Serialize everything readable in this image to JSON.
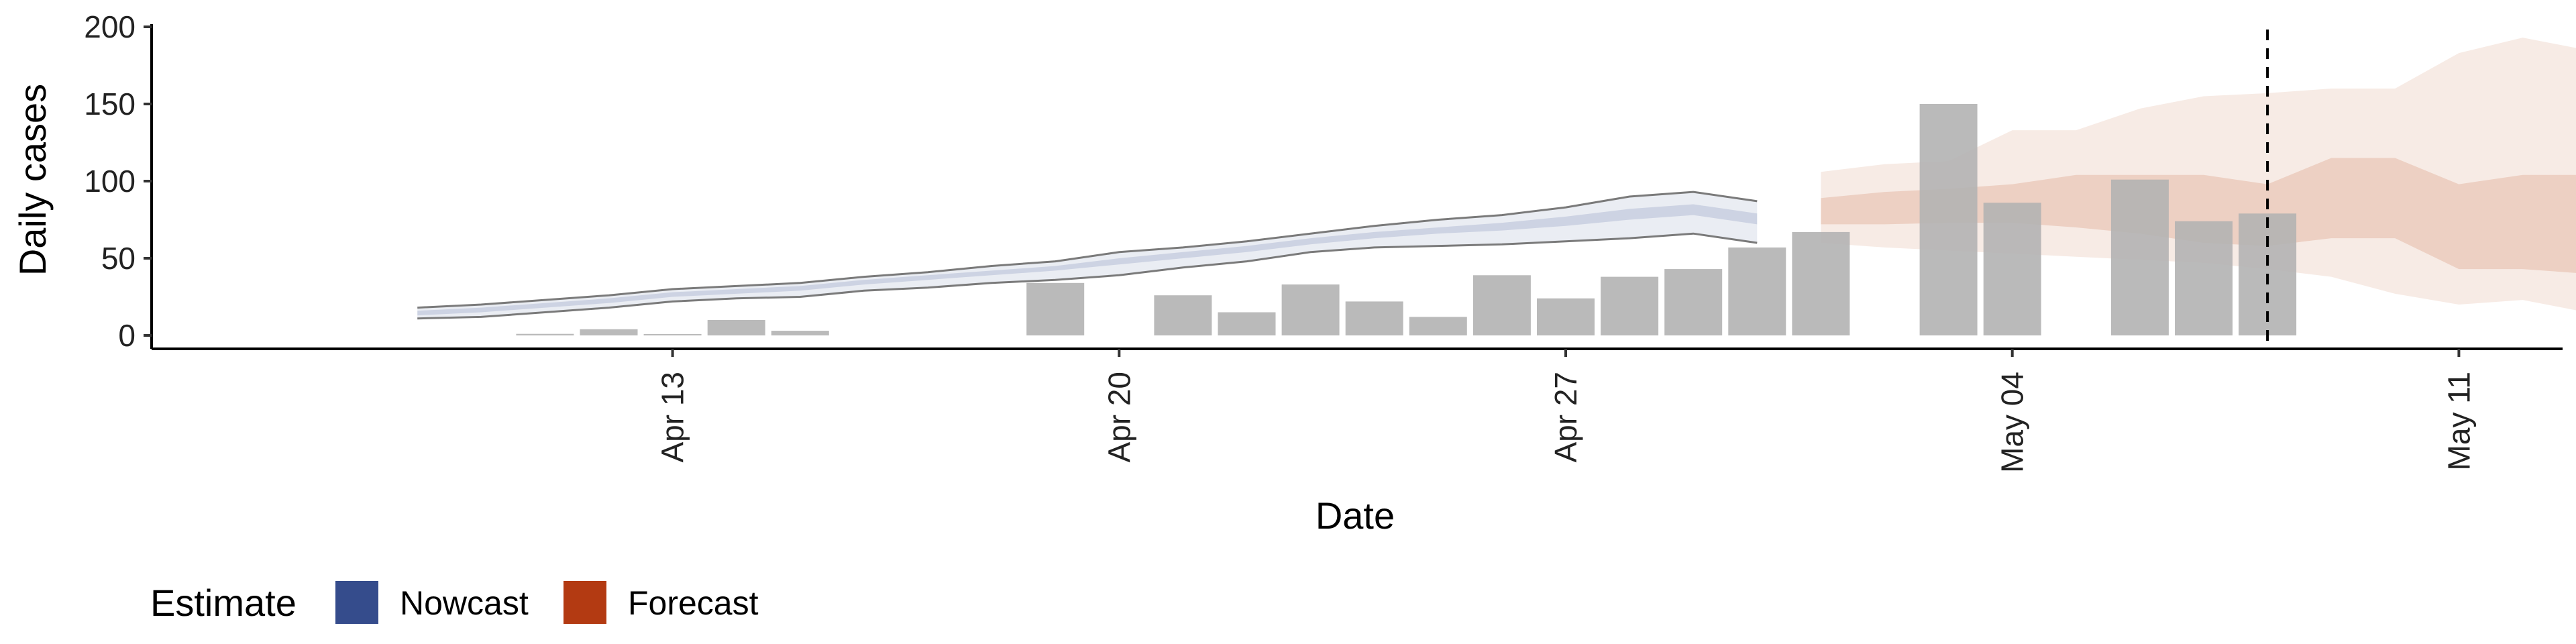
{
  "chart_data": {
    "type": "bar",
    "title": "",
    "xlabel": "Date",
    "ylabel": "Daily cases",
    "x_start": "2020-04-07",
    "x_end": "2020-05-14",
    "ylim": [
      -8,
      200
    ],
    "y_ticks": [
      0,
      50,
      100,
      150,
      200
    ],
    "x_ticks": [
      {
        "date": "2020-04-13",
        "label": "Apr 13"
      },
      {
        "date": "2020-04-20",
        "label": "Apr 20"
      },
      {
        "date": "2020-04-27",
        "label": "Apr 27"
      },
      {
        "date": "2020-05-04",
        "label": "May 04"
      },
      {
        "date": "2020-05-11",
        "label": "May 11"
      }
    ],
    "vline_date": "2020-05-08",
    "grid": false,
    "legend": {
      "title": "Estimate",
      "position": "bottom-left",
      "items": [
        {
          "label": "Nowcast",
          "color": "#354c8c"
        },
        {
          "label": "Forecast",
          "color": "#b33a12"
        }
      ]
    },
    "colors": {
      "bar": "#b3b3b3",
      "nowcast": "#354c8c",
      "forecast": "#c0582a",
      "outline": "#7a7a7a",
      "vline": "#000000"
    },
    "reported_cases": [
      {
        "date": "2020-04-11",
        "value": 1
      },
      {
        "date": "2020-04-12",
        "value": 4
      },
      {
        "date": "2020-04-13",
        "value": 0
      },
      {
        "date": "2020-04-14",
        "value": 10
      },
      {
        "date": "2020-04-15",
        "value": 3
      },
      {
        "date": "2020-04-19",
        "value": 34
      },
      {
        "date": "2020-04-21",
        "value": 26
      },
      {
        "date": "2020-04-22",
        "value": 15
      },
      {
        "date": "2020-04-23",
        "value": 33
      },
      {
        "date": "2020-04-24",
        "value": 22
      },
      {
        "date": "2020-04-25",
        "value": 12
      },
      {
        "date": "2020-04-26",
        "value": 39
      },
      {
        "date": "2020-04-27",
        "value": 24
      },
      {
        "date": "2020-04-28",
        "value": 38
      },
      {
        "date": "2020-04-29",
        "value": 43
      },
      {
        "date": "2020-04-30",
        "value": 57
      },
      {
        "date": "2020-05-01",
        "value": 67
      },
      {
        "date": "2020-05-03",
        "value": 150
      },
      {
        "date": "2020-05-04",
        "value": 86
      },
      {
        "date": "2020-05-06",
        "value": 101
      },
      {
        "date": "2020-05-07",
        "value": 74
      },
      {
        "date": "2020-05-08",
        "value": 79
      }
    ],
    "nowcast": {
      "dates": [
        "2020-04-09",
        "2020-04-10",
        "2020-04-11",
        "2020-04-12",
        "2020-04-13",
        "2020-04-14",
        "2020-04-15",
        "2020-04-16",
        "2020-04-17",
        "2020-04-18",
        "2020-04-19",
        "2020-04-20",
        "2020-04-21",
        "2020-04-22",
        "2020-04-23",
        "2020-04-24",
        "2020-04-25",
        "2020-04-26",
        "2020-04-27",
        "2020-04-28",
        "2020-04-29",
        "2020-04-30"
      ],
      "outer_lower": [
        11,
        12,
        15,
        18,
        22,
        24,
        25,
        29,
        31,
        34,
        36,
        39,
        44,
        48,
        54,
        57,
        58,
        59,
        61,
        63,
        66,
        60
      ],
      "outer_upper": [
        18,
        20,
        23,
        26,
        30,
        32,
        34,
        38,
        41,
        45,
        48,
        54,
        57,
        61,
        66,
        71,
        75,
        78,
        83,
        90,
        93,
        87
      ],
      "inner_lower": [
        13,
        15,
        18,
        21,
        25,
        27,
        29,
        33,
        36,
        39,
        42,
        46,
        50,
        54,
        59,
        63,
        66,
        68,
        71,
        75,
        78,
        72
      ],
      "inner_upper": [
        16,
        18,
        21,
        24,
        28,
        30,
        32,
        36,
        39,
        42,
        45,
        50,
        54,
        58,
        63,
        67,
        70,
        73,
        77,
        82,
        85,
        79
      ]
    },
    "forecast": {
      "dates": [
        "2020-05-01",
        "2020-05-02",
        "2020-05-03",
        "2020-05-04",
        "2020-05-05",
        "2020-05-06",
        "2020-05-07",
        "2020-05-08",
        "2020-05-09",
        "2020-05-10",
        "2020-05-11",
        "2020-05-12",
        "2020-05-13",
        "2020-05-14"
      ],
      "outer_lower": [
        60,
        57,
        55,
        53,
        51,
        49,
        47,
        43,
        38,
        27,
        20,
        23,
        15,
        0
      ],
      "outer_upper": [
        106,
        111,
        113,
        133,
        133,
        147,
        155,
        157,
        160,
        160,
        183,
        193,
        185,
        185
      ],
      "inner_lower": [
        72,
        72,
        73,
        73,
        70,
        66,
        60,
        58,
        63,
        63,
        43,
        43,
        40,
        31
      ],
      "inner_upper": [
        89,
        93,
        95,
        98,
        104,
        104,
        104,
        98,
        115,
        115,
        98,
        104,
        104,
        98
      ]
    }
  }
}
